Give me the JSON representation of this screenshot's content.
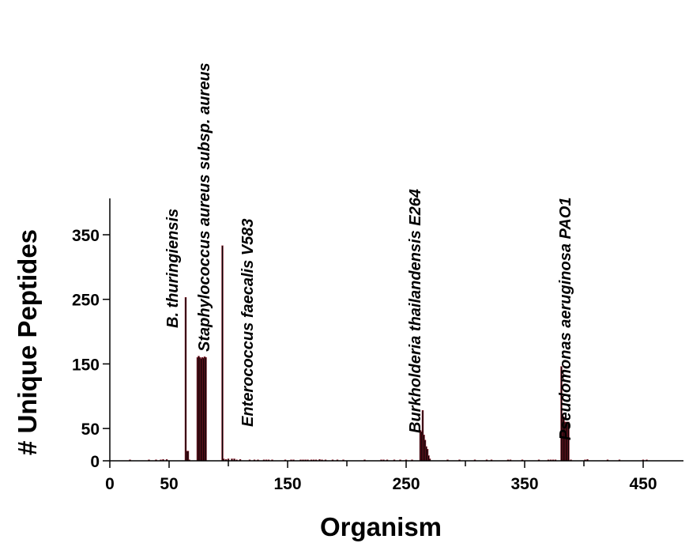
{
  "chart_data": {
    "type": "bar",
    "title": "",
    "xlabel": "Organism",
    "ylabel": "# Unique Peptides",
    "xlim": [
      0,
      460
    ],
    "ylim": [
      0,
      410
    ],
    "xticks": [
      0,
      50,
      150,
      250,
      350,
      450
    ],
    "xticks_minor": [
      100,
      200,
      300,
      400
    ],
    "yticks": [
      0,
      50,
      150,
      250,
      350
    ],
    "grid": false,
    "legend": "none",
    "bar_color": "#000000",
    "bar_edge_color": "#8b1a2b",
    "x": [
      17,
      33,
      39,
      43,
      45,
      48,
      64,
      65,
      66,
      67,
      74,
      75,
      76,
      77,
      78,
      79,
      80,
      81,
      95,
      96,
      98,
      100,
      103,
      105,
      107,
      110,
      118,
      122,
      125,
      130,
      132,
      134,
      137,
      148,
      153,
      155,
      161,
      163,
      165,
      167,
      170,
      172,
      174,
      177,
      179,
      182,
      188,
      192,
      197,
      215,
      229,
      231,
      234,
      240,
      245,
      250,
      255,
      262,
      263,
      264,
      265,
      266,
      267,
      268,
      269,
      270,
      285,
      295,
      308,
      318,
      322,
      336,
      338,
      348,
      362,
      370,
      372,
      374,
      376,
      381,
      382,
      383,
      384,
      385,
      386,
      387,
      389,
      401,
      403,
      420,
      430,
      450,
      453
    ],
    "values": [
      1,
      1,
      1,
      1,
      2,
      2,
      253,
      15,
      15,
      1,
      160,
      162,
      160,
      158,
      160,
      159,
      161,
      160,
      333,
      3,
      2,
      3,
      3,
      3,
      1,
      2,
      1,
      1,
      1,
      1,
      1,
      1,
      1,
      1,
      1,
      1,
      1,
      1,
      1,
      1,
      1,
      1,
      1,
      2,
      1,
      1,
      1,
      1,
      1,
      1,
      1,
      1,
      1,
      1,
      1,
      1,
      1,
      47,
      45,
      78,
      40,
      32,
      22,
      18,
      8,
      3,
      1,
      1,
      1,
      1,
      1,
      1,
      1,
      1,
      1,
      1,
      1,
      1,
      1,
      146,
      72,
      68,
      60,
      60,
      60,
      60,
      1,
      1,
      2,
      1,
      1,
      1,
      1
    ],
    "annotations": [
      "B. thuringiensis",
      "Staphylococcus aureus subsp. aureus",
      "Enterococcus faecalis V583",
      "Burkholderia  thailandensis E264",
      "Pseudomonas aeruginosa PAO1"
    ]
  }
}
